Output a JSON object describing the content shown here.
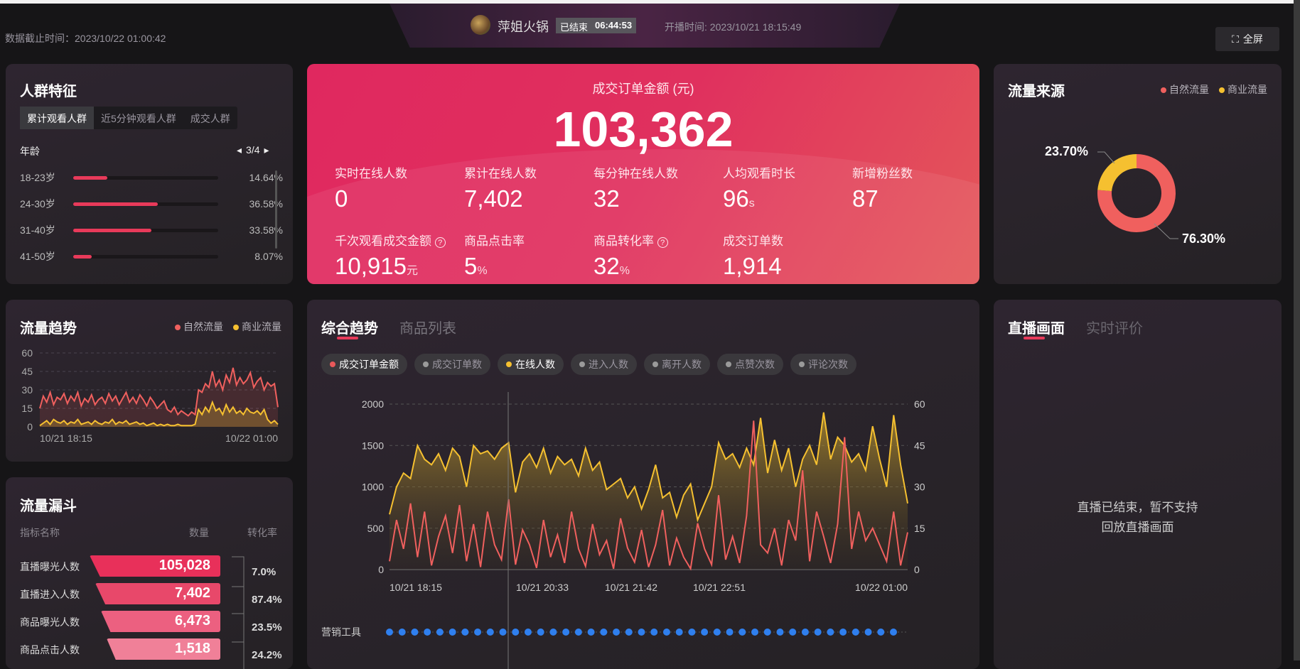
{
  "header": {
    "data_cutoff": "数据截止时间：2023/10/22 01:00:42",
    "shop_name": "萍姐火锅",
    "status": "已结束",
    "duration": "06:44:53",
    "start_time": "开播时间: 2023/10/21 18:15:49",
    "fullscreen": "全屏"
  },
  "audience": {
    "title": "人群特征",
    "tabs": [
      "累计观看人群",
      "近5分钟观看人群",
      "成交人群"
    ],
    "dimension": "年龄",
    "page": "3/4",
    "rows": [
      {
        "label": "18-23岁",
        "pct": "14.64%",
        "value": 14.64
      },
      {
        "label": "24-30岁",
        "pct": "36.58%",
        "value": 36.58
      },
      {
        "label": "31-40岁",
        "pct": "33.58%",
        "value": 33.58
      },
      {
        "label": "41-50岁",
        "pct": "8.07%",
        "value": 8.07
      }
    ],
    "accent": "#e83a5a"
  },
  "kpi": {
    "main_label": "成交订单金额 (元)",
    "main_value": "103,362",
    "metrics": [
      {
        "label": "实时在线人数",
        "value": "0",
        "unit": ""
      },
      {
        "label": "累计在线人数",
        "value": "7,402",
        "unit": ""
      },
      {
        "label": "每分钟在线人数",
        "value": "32",
        "unit": ""
      },
      {
        "label": "人均观看时长",
        "value": "96",
        "unit": "s"
      },
      {
        "label": "新增粉丝数",
        "value": "87",
        "unit": ""
      },
      {
        "label": "千次观看成交金额",
        "value": "10,915",
        "unit": "元",
        "help": "?"
      },
      {
        "label": "商品点击率",
        "value": "5",
        "unit": "%"
      },
      {
        "label": "商品转化率",
        "value": "32",
        "unit": "%",
        "help": "?"
      },
      {
        "label": "成交订单数",
        "value": "1,914",
        "unit": ""
      }
    ]
  },
  "source": {
    "title": "流量来源",
    "legend": [
      "自然流量",
      "商业流量"
    ]
  },
  "traffic_trend": {
    "title": "流量趋势",
    "legend": [
      "自然流量",
      "商业流量"
    ]
  },
  "funnel": {
    "title": "流量漏斗",
    "headers": [
      "指标名称",
      "数量",
      "转化率"
    ],
    "rows": [
      {
        "label": "直播曝光人数",
        "value": "105,028",
        "color": "#e8305a"
      },
      {
        "label": "直播进入人数",
        "value": "7,402",
        "color": "#e8486a"
      },
      {
        "label": "商品曝光人数",
        "value": "6,473",
        "color": "#ec6080"
      },
      {
        "label": "商品点击人数",
        "value": "1,518",
        "color": "#f08098"
      }
    ],
    "rates": [
      "7.0%",
      "87.4%",
      "23.5%",
      "24.2%"
    ]
  },
  "trend": {
    "tabs": [
      "综合趋势",
      "商品列表"
    ],
    "chips": [
      {
        "label": "成交订单金额",
        "dot": "#e8585a",
        "on": true
      },
      {
        "label": "成交订单数",
        "dot": "#9a9a9a",
        "on": false
      },
      {
        "label": "在线人数",
        "dot": "#f5c030",
        "on": true
      },
      {
        "label": "进入人数",
        "dot": "#9a9a9a",
        "on": false
      },
      {
        "label": "离开人数",
        "dot": "#9a9a9a",
        "on": false
      },
      {
        "label": "点赞次数",
        "dot": "#9a9a9a",
        "on": false
      },
      {
        "label": "评论次数",
        "dot": "#9a9a9a",
        "on": false
      }
    ],
    "marketing_label": "营销工具"
  },
  "live": {
    "tabs": [
      "直播画面",
      "实时评价"
    ],
    "message_line1": "直播已结束，暂不支持",
    "message_line2": "回放直播画面"
  },
  "chart_data": [
    {
      "type": "pie",
      "donut": true,
      "legend": "top-right",
      "series": [
        {
          "name": "自然流量",
          "value": 76.3,
          "label": "76.30%",
          "color": "#f0605e"
        },
        {
          "name": "商业流量",
          "value": 23.7,
          "label": "23.70%",
          "color": "#f5c030"
        }
      ]
    },
    {
      "type": "area",
      "legend": "top-right",
      "ylim": [
        0,
        60
      ],
      "yticks": [
        "0",
        "15",
        "30",
        "45",
        "60"
      ],
      "xticks": [
        "10/21 18:15",
        "10/22 01:00"
      ],
      "grid": true,
      "series": [
        {
          "name": "自然流量",
          "color": "#f0605e",
          "values": [
            15,
            25,
            20,
            28,
            18,
            24,
            22,
            27,
            19,
            25,
            21,
            28,
            17,
            23,
            20,
            26,
            18,
            22,
            24,
            19,
            27,
            21,
            25,
            18,
            23,
            28,
            20,
            24,
            19,
            26,
            22,
            17,
            24,
            20,
            15,
            18,
            21,
            14,
            12,
            16,
            10,
            13,
            11,
            9,
            12,
            10,
            30,
            28,
            35,
            32,
            45,
            33,
            38,
            30,
            42,
            36,
            48,
            34,
            40,
            35,
            38,
            44,
            32,
            37,
            40,
            30,
            36,
            33,
            35,
            16
          ]
        },
        {
          "name": "商业流量",
          "color": "#f5c030",
          "values": [
            1,
            3,
            5,
            2,
            6,
            4,
            3,
            5,
            2,
            4,
            3,
            6,
            2,
            3,
            4,
            2,
            5,
            3,
            2,
            4,
            3,
            6,
            2,
            4,
            3,
            5,
            2,
            3,
            4,
            2,
            3,
            1,
            2,
            3,
            1,
            2,
            1,
            2,
            1,
            1,
            2,
            1,
            1,
            1,
            1,
            2,
            14,
            10,
            16,
            12,
            20,
            13,
            15,
            10,
            18,
            12,
            16,
            11,
            13,
            10,
            15,
            12,
            11,
            13,
            10,
            14,
            6,
            3,
            5,
            2
          ]
        }
      ]
    },
    {
      "type": "line",
      "grid": true,
      "xticks": [
        "10/21 18:15",
        "10/21 20:33",
        "10/21 21:42",
        "10/21 22:51",
        "10/22 01:00"
      ],
      "y_left": {
        "ylim": [
          0,
          2000
        ],
        "ticks": [
          "0",
          "500",
          "1000",
          "1500",
          "2000"
        ]
      },
      "y_right": {
        "ylim": [
          0,
          60
        ],
        "ticks": [
          "0",
          "15",
          "30",
          "45",
          "60"
        ]
      },
      "series": [
        {
          "name": "成交订单金额",
          "axis": "left",
          "color": "#f0605e",
          "values": [
            100,
            600,
            250,
            800,
            150,
            700,
            50,
            400,
            650,
            200,
            780,
            100,
            550,
            30,
            700,
            300,
            120,
            850,
            60,
            480,
            300,
            20,
            600,
            150,
            420,
            80,
            700,
            250,
            40,
            550,
            180,
            350,
            10,
            620,
            260,
            90,
            480,
            30,
            300,
            720,
            50,
            380,
            150,
            10,
            560,
            250,
            60,
            900,
            120,
            400,
            80,
            650,
            1800,
            300,
            200,
            500,
            50,
            600,
            350,
            1200,
            100,
            700,
            400,
            80,
            550,
            1600,
            250,
            700,
            350,
            500,
            300,
            100,
            700,
            50,
            450
          ]
        },
        {
          "name": "在线人数",
          "axis": "right",
          "color": "#f5c030",
          "values": [
            20,
            30,
            35,
            33,
            45,
            40,
            38,
            42,
            36,
            44,
            41,
            30,
            45,
            42,
            43,
            40,
            44,
            46,
            28,
            39,
            42,
            37,
            44,
            35,
            41,
            38,
            40,
            34,
            44,
            36,
            39,
            29,
            31,
            33,
            26,
            30,
            22,
            29,
            38,
            26,
            28,
            19,
            27,
            31,
            18,
            24,
            30,
            46,
            40,
            42,
            37,
            44,
            38,
            55,
            35,
            47,
            36,
            44,
            30,
            40,
            45,
            38,
            57,
            40,
            48,
            45,
            39,
            42,
            36,
            52,
            40,
            30,
            56,
            38,
            24
          ]
        }
      ],
      "marketing_events": 41
    }
  ]
}
